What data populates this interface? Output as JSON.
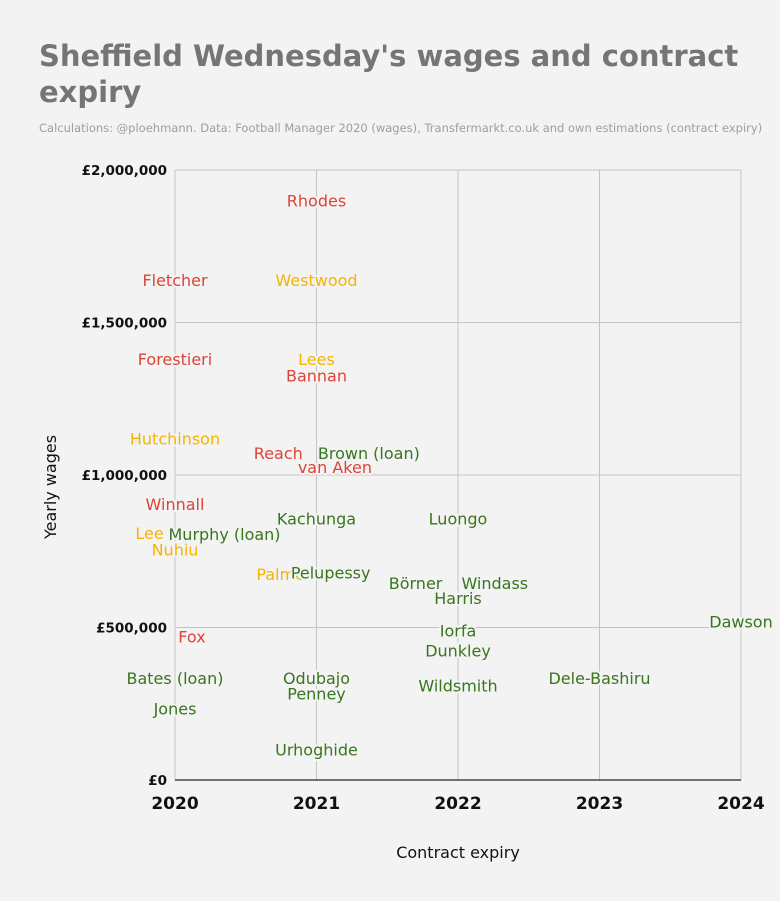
{
  "chart_data": {
    "type": "scatter",
    "title": "Sheffield Wednesday's wages and contract expiry",
    "subtitle": "Calculations: @ploehmann. Data: Football Manager 2020 (wages), Transfermarkt.co.uk and own estimations (contract expiry)",
    "xlabel": "Contract expiry",
    "ylabel": "Yearly wages",
    "xlim": [
      2020,
      2024
    ],
    "ylim": [
      0,
      2000000
    ],
    "x_ticks": [
      2020,
      2021,
      2022,
      2023,
      2024
    ],
    "x_tick_labels": [
      "2020",
      "2021",
      "2022",
      "2023",
      "2024"
    ],
    "y_ticks": [
      0,
      500000,
      1000000,
      1500000,
      2000000
    ],
    "y_tick_labels": [
      "£0",
      "£500,000",
      "£1,000,000",
      "£1,500,000",
      "£2,000,000"
    ],
    "grid": true,
    "colors": {
      "red": "#db4437",
      "yellow": "#f4b400",
      "green": "#38761d"
    },
    "points": [
      {
        "label": "Rhodes",
        "x": 2021,
        "y": 1900000,
        "color": "red"
      },
      {
        "label": "Fletcher",
        "x": 2020,
        "y": 1640000,
        "color": "red"
      },
      {
        "label": "Westwood",
        "x": 2021,
        "y": 1640000,
        "color": "yellow"
      },
      {
        "label": "Forestieri",
        "x": 2020,
        "y": 1380000,
        "color": "red"
      },
      {
        "label": "Lees",
        "x": 2021,
        "y": 1380000,
        "color": "yellow"
      },
      {
        "label": "Bannan",
        "x": 2021,
        "y": 1327000,
        "color": "red"
      },
      {
        "label": "Hutchinson",
        "x": 2020,
        "y": 1120000,
        "color": "yellow"
      },
      {
        "label": "Reach",
        "x": 2020.73,
        "y": 1072000,
        "color": "red"
      },
      {
        "label": "Brown (loan)",
        "x": 2021.37,
        "y": 1072000,
        "color": "green"
      },
      {
        "label": "van Aken",
        "x": 2021.13,
        "y": 1027000,
        "color": "red"
      },
      {
        "label": "Winnall",
        "x": 2020,
        "y": 905000,
        "color": "red"
      },
      {
        "label": "Kachunga",
        "x": 2021,
        "y": 857000,
        "color": "green"
      },
      {
        "label": "Luongo",
        "x": 2022,
        "y": 857000,
        "color": "green"
      },
      {
        "label": "Lee",
        "x": 2019.82,
        "y": 810000,
        "color": "yellow"
      },
      {
        "label": "Murphy (loan)",
        "x": 2020.35,
        "y": 806000,
        "color": "green"
      },
      {
        "label": "Nuhiu",
        "x": 2020,
        "y": 755000,
        "color": "yellow"
      },
      {
        "label": "Palmer",
        "x": 2020.77,
        "y": 676000,
        "color": "yellow"
      },
      {
        "label": "Pelupessy",
        "x": 2021.1,
        "y": 680000,
        "color": "green"
      },
      {
        "label": "Börner",
        "x": 2021.7,
        "y": 646000,
        "color": "green"
      },
      {
        "label": "Windass",
        "x": 2022.26,
        "y": 646000,
        "color": "green"
      },
      {
        "label": "Harris",
        "x": 2022,
        "y": 596000,
        "color": "green"
      },
      {
        "label": "Dawson",
        "x": 2024,
        "y": 520000,
        "color": "green"
      },
      {
        "label": "Fox",
        "x": 2020.12,
        "y": 470000,
        "color": "red"
      },
      {
        "label": "Iorfa",
        "x": 2022,
        "y": 490000,
        "color": "green"
      },
      {
        "label": "Dunkley",
        "x": 2022,
        "y": 425000,
        "color": "green"
      },
      {
        "label": "Bates (loan)",
        "x": 2020,
        "y": 335000,
        "color": "green"
      },
      {
        "label": "Odubajo",
        "x": 2021,
        "y": 335000,
        "color": "green"
      },
      {
        "label": "Dele-Bashiru",
        "x": 2023,
        "y": 335000,
        "color": "green"
      },
      {
        "label": "Wildsmith",
        "x": 2022,
        "y": 310000,
        "color": "green"
      },
      {
        "label": "Penney",
        "x": 2021,
        "y": 283000,
        "color": "green"
      },
      {
        "label": "Jones",
        "x": 2020,
        "y": 235000,
        "color": "green"
      },
      {
        "label": "Urhoghide",
        "x": 2021,
        "y": 100000,
        "color": "green"
      }
    ]
  }
}
